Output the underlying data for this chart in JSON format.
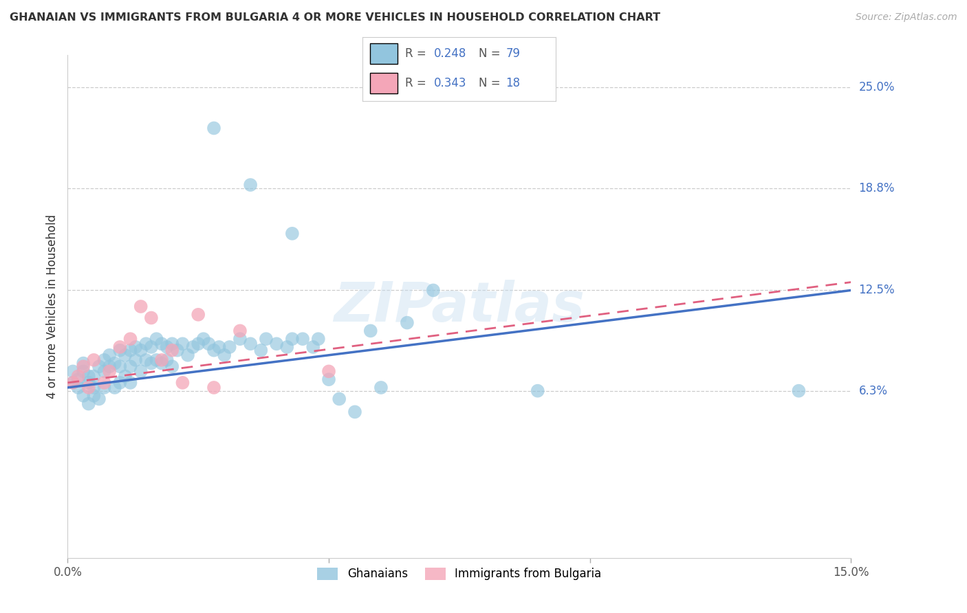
{
  "title": "GHANAIAN VS IMMIGRANTS FROM BULGARIA 4 OR MORE VEHICLES IN HOUSEHOLD CORRELATION CHART",
  "source": "Source: ZipAtlas.com",
  "ylabel_label": "4 or more Vehicles in Household",
  "right_ytick_labels": [
    "25.0%",
    "18.8%",
    "12.5%",
    "6.3%"
  ],
  "right_ytick_values": [
    0.25,
    0.188,
    0.125,
    0.063
  ],
  "xmin": 0.0,
  "xmax": 0.15,
  "ymin": -0.04,
  "ymax": 0.27,
  "ghanaian_R": 0.248,
  "ghanaian_N": 79,
  "bulgaria_R": 0.343,
  "bulgaria_N": 18,
  "ghanaian_color": "#92c5de",
  "bulgaria_color": "#f4a6b8",
  "ghanaian_line_color": "#4472c4",
  "bulgaria_line_color": "#e06080",
  "watermark": "ZIPatlas",
  "ghanaian_x": [
    0.001,
    0.001,
    0.002,
    0.002,
    0.003,
    0.003,
    0.003,
    0.004,
    0.004,
    0.004,
    0.005,
    0.005,
    0.005,
    0.006,
    0.006,
    0.007,
    0.007,
    0.007,
    0.008,
    0.008,
    0.009,
    0.009,
    0.01,
    0.01,
    0.01,
    0.011,
    0.011,
    0.012,
    0.012,
    0.012,
    0.013,
    0.013,
    0.014,
    0.014,
    0.015,
    0.015,
    0.016,
    0.016,
    0.017,
    0.017,
    0.018,
    0.018,
    0.019,
    0.019,
    0.02,
    0.02,
    0.021,
    0.022,
    0.023,
    0.024,
    0.025,
    0.026,
    0.027,
    0.028,
    0.029,
    0.03,
    0.031,
    0.033,
    0.035,
    0.037,
    0.04,
    0.042,
    0.045,
    0.047,
    0.05,
    0.052,
    0.055,
    0.06,
    0.065,
    0.07,
    0.038,
    0.043,
    0.048,
    0.058,
    0.09,
    0.14,
    0.043,
    0.035,
    0.028
  ],
  "ghanaian_y": [
    0.068,
    0.075,
    0.07,
    0.065,
    0.075,
    0.08,
    0.06,
    0.068,
    0.055,
    0.072,
    0.072,
    0.065,
    0.06,
    0.078,
    0.058,
    0.082,
    0.075,
    0.065,
    0.078,
    0.085,
    0.08,
    0.065,
    0.088,
    0.078,
    0.068,
    0.085,
    0.072,
    0.088,
    0.078,
    0.068,
    0.09,
    0.082,
    0.088,
    0.075,
    0.092,
    0.082,
    0.09,
    0.08,
    0.095,
    0.082,
    0.092,
    0.08,
    0.09,
    0.082,
    0.092,
    0.078,
    0.088,
    0.092,
    0.085,
    0.09,
    0.092,
    0.095,
    0.092,
    0.088,
    0.09,
    0.085,
    0.09,
    0.095,
    0.092,
    0.088,
    0.092,
    0.09,
    0.095,
    0.09,
    0.07,
    0.058,
    0.05,
    0.065,
    0.105,
    0.125,
    0.095,
    0.095,
    0.095,
    0.1,
    0.063,
    0.063,
    0.16,
    0.19,
    0.225
  ],
  "bulgaria_x": [
    0.001,
    0.002,
    0.003,
    0.004,
    0.005,
    0.007,
    0.008,
    0.01,
    0.012,
    0.014,
    0.016,
    0.018,
    0.02,
    0.022,
    0.025,
    0.028,
    0.033,
    0.05
  ],
  "bulgaria_y": [
    0.068,
    0.072,
    0.078,
    0.065,
    0.082,
    0.068,
    0.075,
    0.09,
    0.095,
    0.115,
    0.108,
    0.082,
    0.088,
    0.068,
    0.11,
    0.065,
    0.1,
    0.075
  ],
  "ghanaian_line_x": [
    0.0,
    0.15
  ],
  "ghanaian_line_y": [
    0.065,
    0.125
  ],
  "bulgaria_line_x": [
    0.0,
    0.15
  ],
  "bulgaria_line_y": [
    0.068,
    0.13
  ]
}
